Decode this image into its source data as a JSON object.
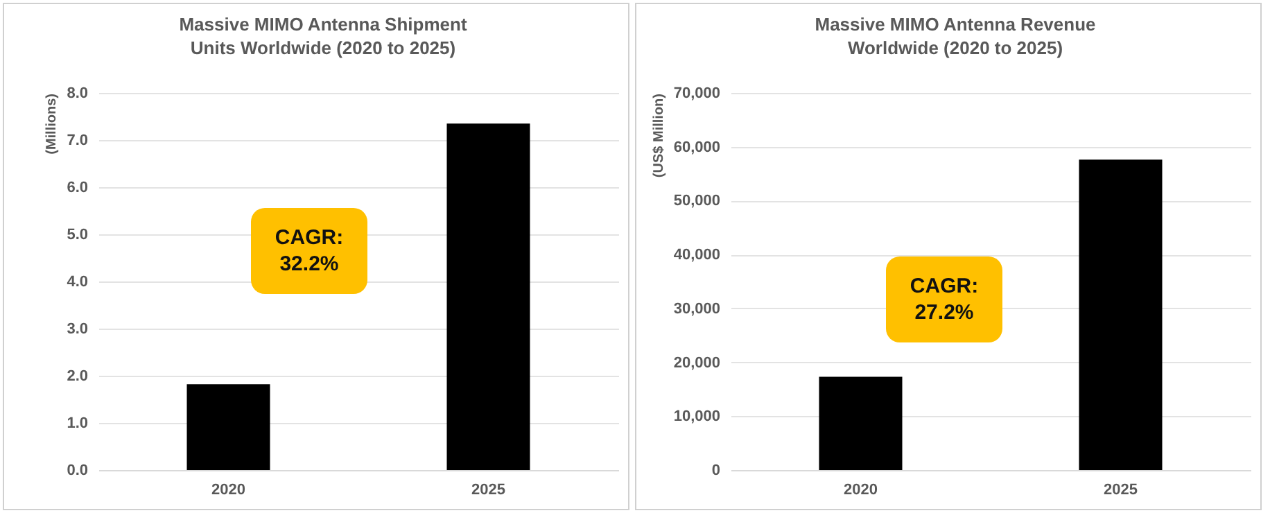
{
  "chart_data": [
    {
      "type": "bar",
      "title": "Massive MIMO Antenna Shipment Units Worldwide (2020 to 2025)",
      "ylabel": "(Millions)",
      "categories": [
        "2020",
        "2025"
      ],
      "values": [
        1.82,
        7.35
      ],
      "color": "#000000",
      "ylim": [
        0,
        8
      ],
      "yticks": [
        {
          "value": 0,
          "label": "0.0"
        },
        {
          "value": 1,
          "label": "1.0"
        },
        {
          "value": 2,
          "label": "2.0"
        },
        {
          "value": 3,
          "label": "3.0"
        },
        {
          "value": 4,
          "label": "4.0"
        },
        {
          "value": 5,
          "label": "5.0"
        },
        {
          "value": 6,
          "label": "6.0"
        },
        {
          "value": 7,
          "label": "7.0"
        },
        {
          "value": 8,
          "label": "8.0"
        }
      ],
      "grid": "y",
      "annotations": [
        "CAGR: 32.2%"
      ]
    },
    {
      "type": "bar",
      "title": "Massive MIMO Antenna Revenue Worldwide (2020 to 2025)",
      "ylabel": "(US$ Million)",
      "categories": [
        "2020",
        "2025"
      ],
      "values": [
        17300,
        57600
      ],
      "color": "#000000",
      "ylim": [
        0,
        70000
      ],
      "yticks": [
        0,
        {
          "value": 10000,
          "label": "10,000"
        },
        {
          "value": 20000,
          "label": "20,000"
        },
        {
          "value": 30000,
          "label": "30,000"
        },
        {
          "value": 40000,
          "label": "40,000"
        },
        {
          "value": 50000,
          "label": "50,000"
        },
        {
          "value": 60000,
          "label": "60,000"
        },
        {
          "value": 70000,
          "label": "70,000"
        }
      ],
      "grid": "y",
      "annotations": [
        "CAGR: 27.2%"
      ]
    }
  ]
}
